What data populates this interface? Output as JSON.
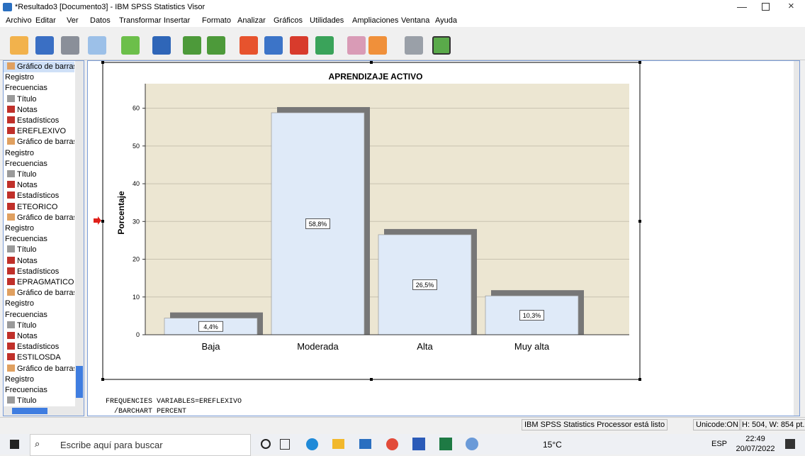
{
  "window": {
    "title": "*Resultado3 [Documento3] - IBM SPSS Statistics Visor"
  },
  "menu": [
    "Archivo",
    "Editar",
    "Ver",
    "Datos",
    "Transformar",
    "Insertar",
    "Formato",
    "Analizar",
    "Gráficos",
    "Utilidades",
    "Ampliaciones",
    "Ventana",
    "Ayuda"
  ],
  "outline": [
    {
      "label": "Gráfico de barras",
      "icon": "chart"
    },
    {
      "label": "Registro"
    },
    {
      "label": "Frecuencias"
    },
    {
      "label": "Título",
      "icon": "title"
    },
    {
      "label": "Notas",
      "icon": "notes"
    },
    {
      "label": "Estadísticos",
      "icon": "table"
    },
    {
      "label": "EREFLEXIVO",
      "icon": "table"
    },
    {
      "label": "Gráfico de barras",
      "icon": "chart"
    },
    {
      "label": "Registro"
    },
    {
      "label": "Frecuencias"
    },
    {
      "label": "Título",
      "icon": "title"
    },
    {
      "label": "Notas",
      "icon": "notes"
    },
    {
      "label": "Estadísticos",
      "icon": "table"
    },
    {
      "label": "ETEORICO",
      "icon": "table"
    },
    {
      "label": "Gráfico de barras",
      "icon": "chart"
    },
    {
      "label": "Registro"
    },
    {
      "label": "Frecuencias"
    },
    {
      "label": "Título",
      "icon": "title"
    },
    {
      "label": "Notas",
      "icon": "notes"
    },
    {
      "label": "Estadísticos",
      "icon": "table"
    },
    {
      "label": "EPRAGMATICO",
      "icon": "table"
    },
    {
      "label": "Gráfico de barras",
      "icon": "chart"
    },
    {
      "label": "Registro"
    },
    {
      "label": "Frecuencias"
    },
    {
      "label": "Título",
      "icon": "title"
    },
    {
      "label": "Notas",
      "icon": "notes"
    },
    {
      "label": "Estadísticos",
      "icon": "table"
    },
    {
      "label": "ESTILOSDA",
      "icon": "table"
    },
    {
      "label": "Gráfico de barras",
      "icon": "chart"
    },
    {
      "label": "Registro"
    },
    {
      "label": "Frecuencias"
    },
    {
      "label": "Título",
      "icon": "title"
    }
  ],
  "syntax": [
    "FREQUENCIES VARIABLES=EREFLEXIVO",
    "  /BARCHART PERCENT"
  ],
  "status": [
    "IBM SPSS Statistics Processor está listo",
    "Unicode:ON",
    "H: 504, W: 854 pt."
  ],
  "taskbar": {
    "search": "Escribe aquí para buscar",
    "temperature": "15°C",
    "language": "ESP",
    "time": "22:49",
    "date": "20/07/2022"
  },
  "chart_data": {
    "type": "bar",
    "title": "APRENDIZAJE ACTIVO",
    "y_label": "Porcentaje",
    "categories": [
      "Baja",
      "Moderada",
      "Alta",
      "Muy alta"
    ],
    "values": [
      4.4,
      58.8,
      26.5,
      10.3
    ],
    "value_labels": [
      "4,4%",
      "58,8%",
      "26,5%",
      "10,3%"
    ],
    "color": "#dfeaf8",
    "shadow_color": "#777777",
    "background": "#ece6d2",
    "ylim": [
      0,
      66.5
    ],
    "yticks": [
      0,
      10,
      20,
      30,
      40,
      50,
      60
    ],
    "grid": true
  }
}
